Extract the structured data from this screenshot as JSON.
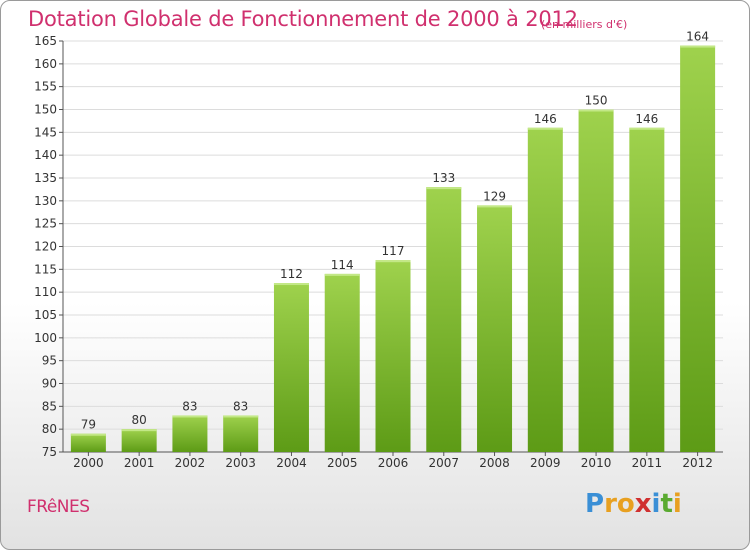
{
  "header": {
    "title": "Dotation Globale de Fonctionnement de 2000 à 2012",
    "subtitle": "(en milliers d'€)"
  },
  "footer": {
    "town": "FRêNES",
    "brand": {
      "text": "Proxiti",
      "letters": [
        {
          "ch": "P",
          "color": "#3a8fd6"
        },
        {
          "ch": "r",
          "color": "#e8a020"
        },
        {
          "ch": "o",
          "color": "#e8a020"
        },
        {
          "ch": "x",
          "color": "#d03030"
        },
        {
          "ch": "i",
          "color": "#3a8fd6"
        },
        {
          "ch": "t",
          "color": "#5aaa30"
        },
        {
          "ch": "i",
          "color": "#e8a020"
        }
      ]
    }
  },
  "colors": {
    "title": "#d0306e",
    "bar_top": "#9fd24d",
    "bar_bottom": "#5d9b16",
    "grid": "#dcdcdc",
    "axis": "#555555"
  },
  "chart_data": {
    "type": "bar",
    "title": "Dotation Globale de Fonctionnement de 2000 à 2012",
    "subtitle": "(en milliers d'€)",
    "xlabel": "",
    "ylabel": "",
    "categories": [
      "2000",
      "2001",
      "2002",
      "2003",
      "2004",
      "2005",
      "2006",
      "2007",
      "2008",
      "2009",
      "2010",
      "2011",
      "2012"
    ],
    "values": [
      79,
      80,
      83,
      83,
      112,
      114,
      117,
      133,
      129,
      146,
      150,
      146,
      164
    ],
    "ylim": [
      75,
      165
    ],
    "yticks": [
      75,
      80,
      85,
      90,
      95,
      100,
      105,
      110,
      115,
      120,
      125,
      130,
      135,
      140,
      145,
      150,
      155,
      160,
      165
    ],
    "grid": true
  }
}
